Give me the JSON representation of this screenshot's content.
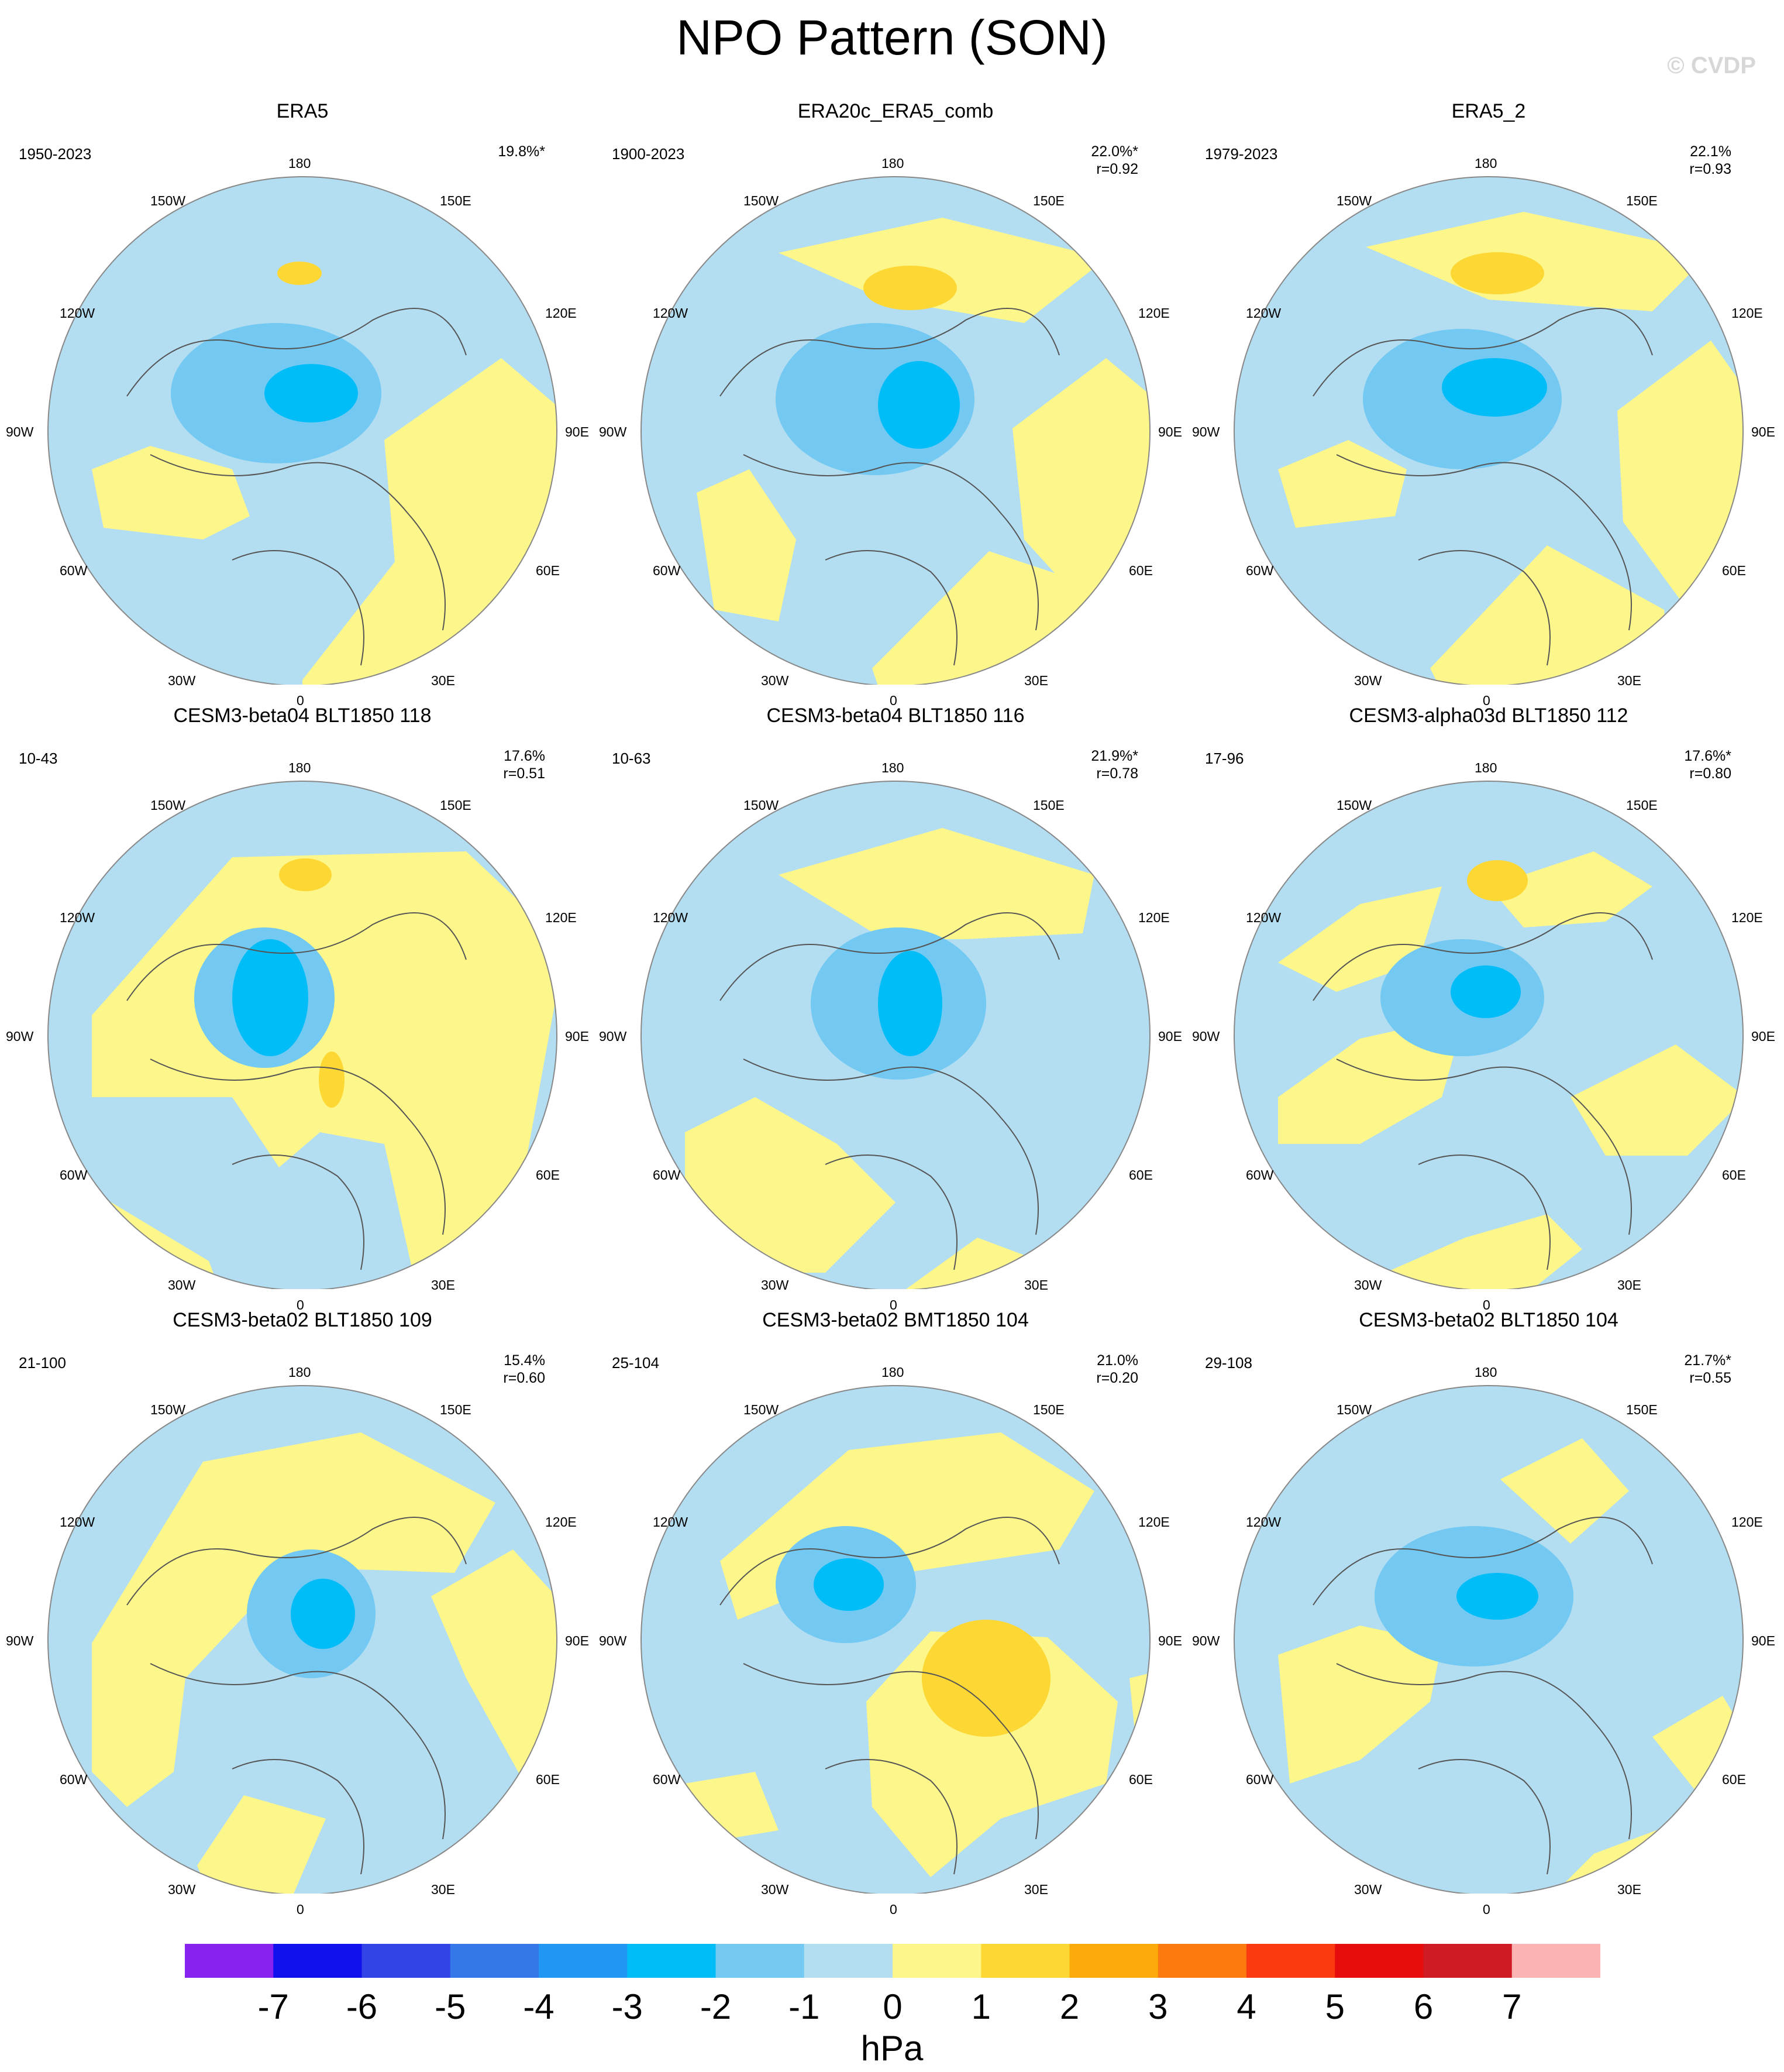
{
  "title": "NPO Pattern (SON)",
  "credit": "© CVDP",
  "colors": {
    "neg7": "#8822ee",
    "neg6": "#1111ee",
    "neg5": "#3344e6",
    "neg4": "#3377e8",
    "neg3": "#2296f3",
    "neg2": "#00bdf8",
    "neg1": "#73c9f1",
    "neg0": "#b3ddf1",
    "pos0": "#fdf68a",
    "pos1": "#fdd733",
    "pos2": "#fdab0b",
    "pos3": "#fc7a10",
    "pos4": "#fc3a12",
    "pos5": "#e80d0d",
    "pos6": "#cf1c24",
    "pos7": "#fcb3b3",
    "coast": "#555555",
    "rim": "#888888"
  },
  "longitude_labels": {
    "top": "180",
    "bottom": "0",
    "left_mid": "90W",
    "right_mid": "90E",
    "ul1": "150W",
    "ul2": "120W",
    "ll1": "60W",
    "ll2": "30W",
    "ur1": "150E",
    "ur2": "120E",
    "lr1": "60E",
    "lr2": "30E"
  },
  "panels": [
    {
      "title": "ERA5",
      "period": "1950-2023",
      "pct": "19.8%*",
      "r": ""
    },
    {
      "title": "ERA20c_ERA5_comb",
      "period": "1900-2023",
      "pct": "22.0%*",
      "r": "r=0.92"
    },
    {
      "title": "ERA5_2",
      "period": "1979-2023",
      "pct": "22.1%",
      "r": "r=0.93"
    },
    {
      "title": "CESM3-beta04 BLT1850 118",
      "period": "10-43",
      "pct": "17.6%",
      "r": "r=0.51"
    },
    {
      "title": "CESM3-beta04 BLT1850 116",
      "period": "10-63",
      "pct": "21.9%*",
      "r": "r=0.78"
    },
    {
      "title": "CESM3-alpha03d BLT1850 112",
      "period": "17-96",
      "pct": "17.6%*",
      "r": "r=0.80"
    },
    {
      "title": "CESM3-beta02 BLT1850 109",
      "period": "21-100",
      "pct": "15.4%",
      "r": "r=0.60"
    },
    {
      "title": "CESM3-beta02 BMT1850 104",
      "period": "25-104",
      "pct": "21.0%",
      "r": "r=0.20"
    },
    {
      "title": "CESM3-beta02 BLT1850 104",
      "period": "29-108",
      "pct": "21.7%*",
      "r": "r=0.55"
    }
  ],
  "colorbar": {
    "labels": [
      "-7",
      "-6",
      "-5",
      "-4",
      "-3",
      "-2",
      "-1",
      "0",
      "1",
      "2",
      "3",
      "4",
      "5",
      "6",
      "7"
    ],
    "units": "hPa"
  }
}
